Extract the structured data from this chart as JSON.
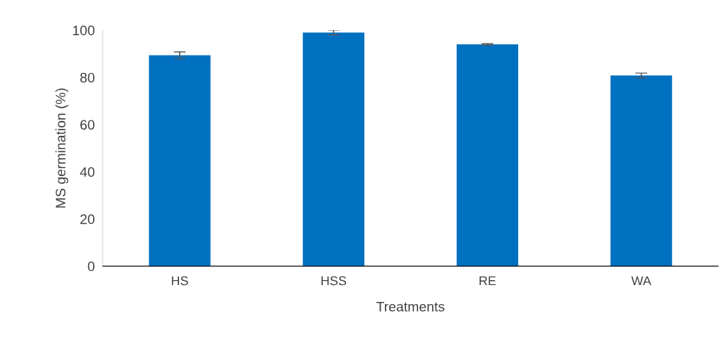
{
  "chart_data": {
    "type": "bar",
    "xlabel": "Treatments",
    "ylabel": "MS germination (%)",
    "categories": [
      "HS",
      "HSS",
      "RE",
      "WA"
    ],
    "values": [
      89.4,
      99,
      94,
      80.8
    ],
    "errors": [
      1.4,
      1,
      0.3,
      1
    ],
    "color": "#0070c0",
    "ylim": [
      0,
      100
    ],
    "yticks": [
      0,
      20,
      40,
      60,
      80,
      100
    ],
    "grid": false
  }
}
